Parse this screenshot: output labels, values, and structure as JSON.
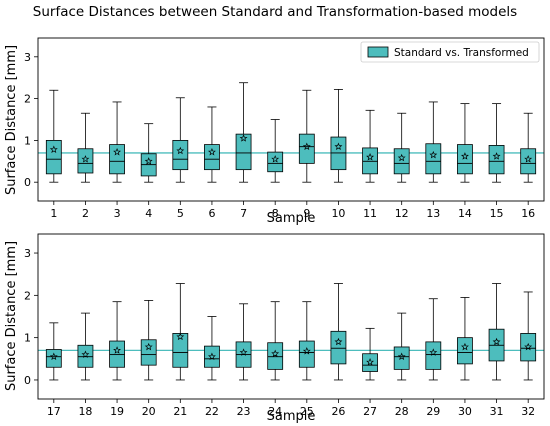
{
  "title": "Surface Distances between Standard and Transformation-based models",
  "colors": {
    "box_fill": "#4dbdbd",
    "median_line": "#000000",
    "reference_line": "#4dbdbd",
    "whisker": "#000000"
  },
  "chart_data": [
    {
      "type": "box",
      "xlabel": "Sample",
      "ylabel": "Surface Distance [mm]",
      "ylim": [
        -0.45,
        3.45
      ],
      "yticks": [
        0,
        1,
        2,
        3
      ],
      "reference_line": 0.7,
      "legend": {
        "label": "Standard vs. Transformed",
        "position": "top-right"
      },
      "categories": [
        "1",
        "2",
        "3",
        "4",
        "5",
        "6",
        "7",
        "8",
        "9",
        "10",
        "11",
        "12",
        "13",
        "14",
        "15",
        "16"
      ],
      "boxes": [
        {
          "min": 0,
          "q1": 0.2,
          "median": 0.55,
          "q3": 1.0,
          "max": 2.2,
          "mean": 0.78
        },
        {
          "min": 0,
          "q1": 0.22,
          "median": 0.45,
          "q3": 0.8,
          "max": 1.65,
          "mean": 0.55
        },
        {
          "min": 0,
          "q1": 0.2,
          "median": 0.5,
          "q3": 0.9,
          "max": 1.92,
          "mean": 0.72
        },
        {
          "min": 0,
          "q1": 0.15,
          "median": 0.42,
          "q3": 0.68,
          "max": 1.4,
          "mean": 0.5
        },
        {
          "min": 0,
          "q1": 0.3,
          "median": 0.55,
          "q3": 1.0,
          "max": 2.02,
          "mean": 0.75
        },
        {
          "min": 0,
          "q1": 0.3,
          "median": 0.55,
          "q3": 0.9,
          "max": 1.8,
          "mean": 0.72
        },
        {
          "min": 0,
          "q1": 0.3,
          "median": 0.7,
          "q3": 1.15,
          "max": 2.38,
          "mean": 1.05
        },
        {
          "min": 0,
          "q1": 0.25,
          "median": 0.45,
          "q3": 0.72,
          "max": 1.5,
          "mean": 0.55
        },
        {
          "min": 0,
          "q1": 0.45,
          "median": 0.85,
          "q3": 1.15,
          "max": 2.2,
          "mean": 0.85
        },
        {
          "min": 0,
          "q1": 0.3,
          "median": 0.7,
          "q3": 1.08,
          "max": 2.22,
          "mean": 0.85
        },
        {
          "min": 0,
          "q1": 0.2,
          "median": 0.5,
          "q3": 0.82,
          "max": 1.72,
          "mean": 0.6
        },
        {
          "min": 0,
          "q1": 0.2,
          "median": 0.45,
          "q3": 0.8,
          "max": 1.65,
          "mean": 0.58
        },
        {
          "min": 0,
          "q1": 0.2,
          "median": 0.5,
          "q3": 0.92,
          "max": 1.92,
          "mean": 0.65
        },
        {
          "min": 0,
          "q1": 0.2,
          "median": 0.45,
          "q3": 0.9,
          "max": 1.88,
          "mean": 0.62
        },
        {
          "min": 0,
          "q1": 0.2,
          "median": 0.5,
          "q3": 0.88,
          "max": 1.88,
          "mean": 0.62
        },
        {
          "min": 0,
          "q1": 0.2,
          "median": 0.45,
          "q3": 0.8,
          "max": 1.65,
          "mean": 0.55
        }
      ]
    },
    {
      "type": "box",
      "xlabel": "Sample",
      "ylabel": "Surface Distance [mm]",
      "ylim": [
        -0.45,
        3.45
      ],
      "yticks": [
        0,
        1,
        2,
        3
      ],
      "reference_line": 0.7,
      "categories": [
        "17",
        "18",
        "19",
        "20",
        "21",
        "22",
        "23",
        "24",
        "25",
        "26",
        "27",
        "28",
        "29",
        "30",
        "31",
        "32"
      ],
      "boxes": [
        {
          "min": 0,
          "q1": 0.3,
          "median": 0.55,
          "q3": 0.72,
          "max": 1.35,
          "mean": 0.55
        },
        {
          "min": 0,
          "q1": 0.3,
          "median": 0.55,
          "q3": 0.82,
          "max": 1.58,
          "mean": 0.6
        },
        {
          "min": 0,
          "q1": 0.3,
          "median": 0.6,
          "q3": 0.92,
          "max": 1.85,
          "mean": 0.7
        },
        {
          "min": 0,
          "q1": 0.35,
          "median": 0.6,
          "q3": 0.95,
          "max": 1.88,
          "mean": 0.78
        },
        {
          "min": 0,
          "q1": 0.3,
          "median": 0.65,
          "q3": 1.1,
          "max": 2.28,
          "mean": 1.02
        },
        {
          "min": 0,
          "q1": 0.3,
          "median": 0.5,
          "q3": 0.8,
          "max": 1.5,
          "mean": 0.55
        },
        {
          "min": 0,
          "q1": 0.3,
          "median": 0.6,
          "q3": 0.9,
          "max": 1.8,
          "mean": 0.65
        },
        {
          "min": 0,
          "q1": 0.25,
          "median": 0.55,
          "q3": 0.88,
          "max": 1.85,
          "mean": 0.62
        },
        {
          "min": 0,
          "q1": 0.3,
          "median": 0.65,
          "q3": 0.92,
          "max": 1.85,
          "mean": 0.68
        },
        {
          "min": 0,
          "q1": 0.38,
          "median": 0.75,
          "q3": 1.15,
          "max": 2.28,
          "mean": 0.9
        },
        {
          "min": 0,
          "q1": 0.2,
          "median": 0.35,
          "q3": 0.62,
          "max": 1.22,
          "mean": 0.42
        },
        {
          "min": 0,
          "q1": 0.25,
          "median": 0.55,
          "q3": 0.78,
          "max": 1.58,
          "mean": 0.55
        },
        {
          "min": 0,
          "q1": 0.25,
          "median": 0.6,
          "q3": 0.9,
          "max": 1.92,
          "mean": 0.65
        },
        {
          "min": 0,
          "q1": 0.38,
          "median": 0.65,
          "q3": 1.0,
          "max": 1.95,
          "mean": 0.78
        },
        {
          "min": 0,
          "q1": 0.45,
          "median": 0.82,
          "q3": 1.2,
          "max": 2.28,
          "mean": 0.9
        },
        {
          "min": 0,
          "q1": 0.45,
          "median": 0.75,
          "q3": 1.1,
          "max": 2.08,
          "mean": 0.78
        }
      ]
    }
  ]
}
